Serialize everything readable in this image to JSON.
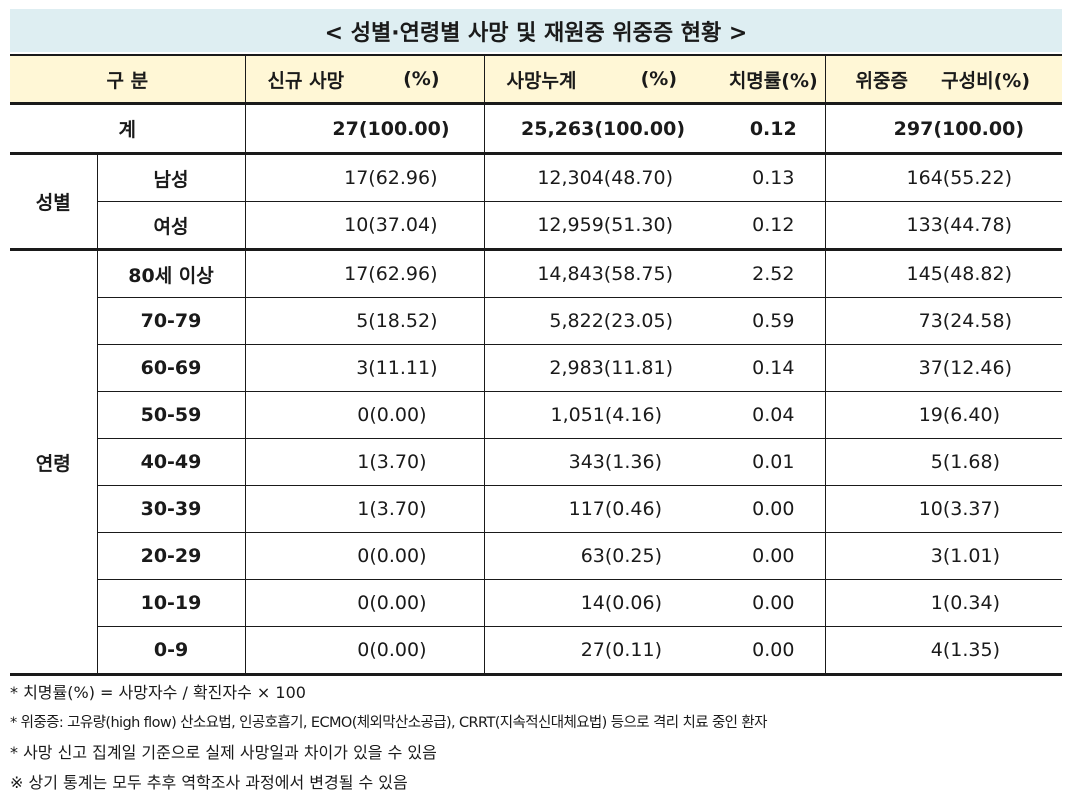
{
  "title": "< 성별·연령별 사망 및 재원중 위중증 현황 >",
  "header": {
    "category": "구 분",
    "new_deaths": "신규 사망",
    "new_deaths_pct": "(%)",
    "cum_deaths": "사망누계",
    "cum_deaths_pct": "(%)",
    "fatality_rate": "치명률(%)",
    "severe": "위중증",
    "severe_ratio": "구성비(%)"
  },
  "total": {
    "label": "계",
    "new_deaths": "27(100.00)",
    "cum_deaths": "25,263(100.00)",
    "fatality_rate": "0.12",
    "severe": "297(100.00)"
  },
  "sex": {
    "group_label": "성별",
    "rows": [
      {
        "label": "남성",
        "new_deaths": "17(62.96)",
        "cum_deaths": "12,304(48.70)",
        "fatality_rate": "0.13",
        "severe": "164(55.22)"
      },
      {
        "label": "여성",
        "new_deaths": "10(37.04)",
        "cum_deaths": "12,959(51.30)",
        "fatality_rate": "0.12",
        "severe": "133(44.78)"
      }
    ]
  },
  "age": {
    "group_label": "연령",
    "rows": [
      {
        "label": "80세 이상",
        "new_deaths": "17(62.96)",
        "cum_deaths": "14,843(58.75)",
        "fatality_rate": "2.52",
        "severe": "145(48.82)"
      },
      {
        "label": "70-79",
        "new_deaths": "5(18.52)",
        "cum_deaths": "5,822(23.05)",
        "fatality_rate": "0.59",
        "severe": "73(24.58)"
      },
      {
        "label": "60-69",
        "new_deaths": "3(11.11)",
        "cum_deaths": "2,983(11.81)",
        "fatality_rate": "0.14",
        "severe": "37(12.46)"
      },
      {
        "label": "50-59",
        "new_deaths": "0(0.00)",
        "cum_deaths": "1,051(4.16)",
        "fatality_rate": "0.04",
        "severe": "19(6.40)"
      },
      {
        "label": "40-49",
        "new_deaths": "1(3.70)",
        "cum_deaths": "343(1.36)",
        "fatality_rate": "0.01",
        "severe": "5(1.68)"
      },
      {
        "label": "30-39",
        "new_deaths": "1(3.70)",
        "cum_deaths": "117(0.46)",
        "fatality_rate": "0.00",
        "severe": "10(3.37)"
      },
      {
        "label": "20-29",
        "new_deaths": "0(0.00)",
        "cum_deaths": "63(0.25)",
        "fatality_rate": "0.00",
        "severe": "3(1.01)"
      },
      {
        "label": "10-19",
        "new_deaths": "0(0.00)",
        "cum_deaths": "14(0.06)",
        "fatality_rate": "0.00",
        "severe": "1(0.34)"
      },
      {
        "label": "0-9",
        "new_deaths": "0(0.00)",
        "cum_deaths": "27(0.11)",
        "fatality_rate": "0.00",
        "severe": "4(1.35)"
      }
    ]
  },
  "notes": [
    "* 치명률(%) = 사망자수 / 확진자수 × 100",
    "* 위중증: 고유량(high flow) 산소요법, 인공호흡기, ECMO(체외막산소공급), CRRT(지속적신대체요법) 등으로 격리 치료 중인 환자",
    "* 사망 신고 집계일 기준으로 실제 사망일과 차이가 있을 수 있음",
    "※ 상기 통계는 모두 추후 역학조사 과정에서 변경될 수 있음"
  ]
}
